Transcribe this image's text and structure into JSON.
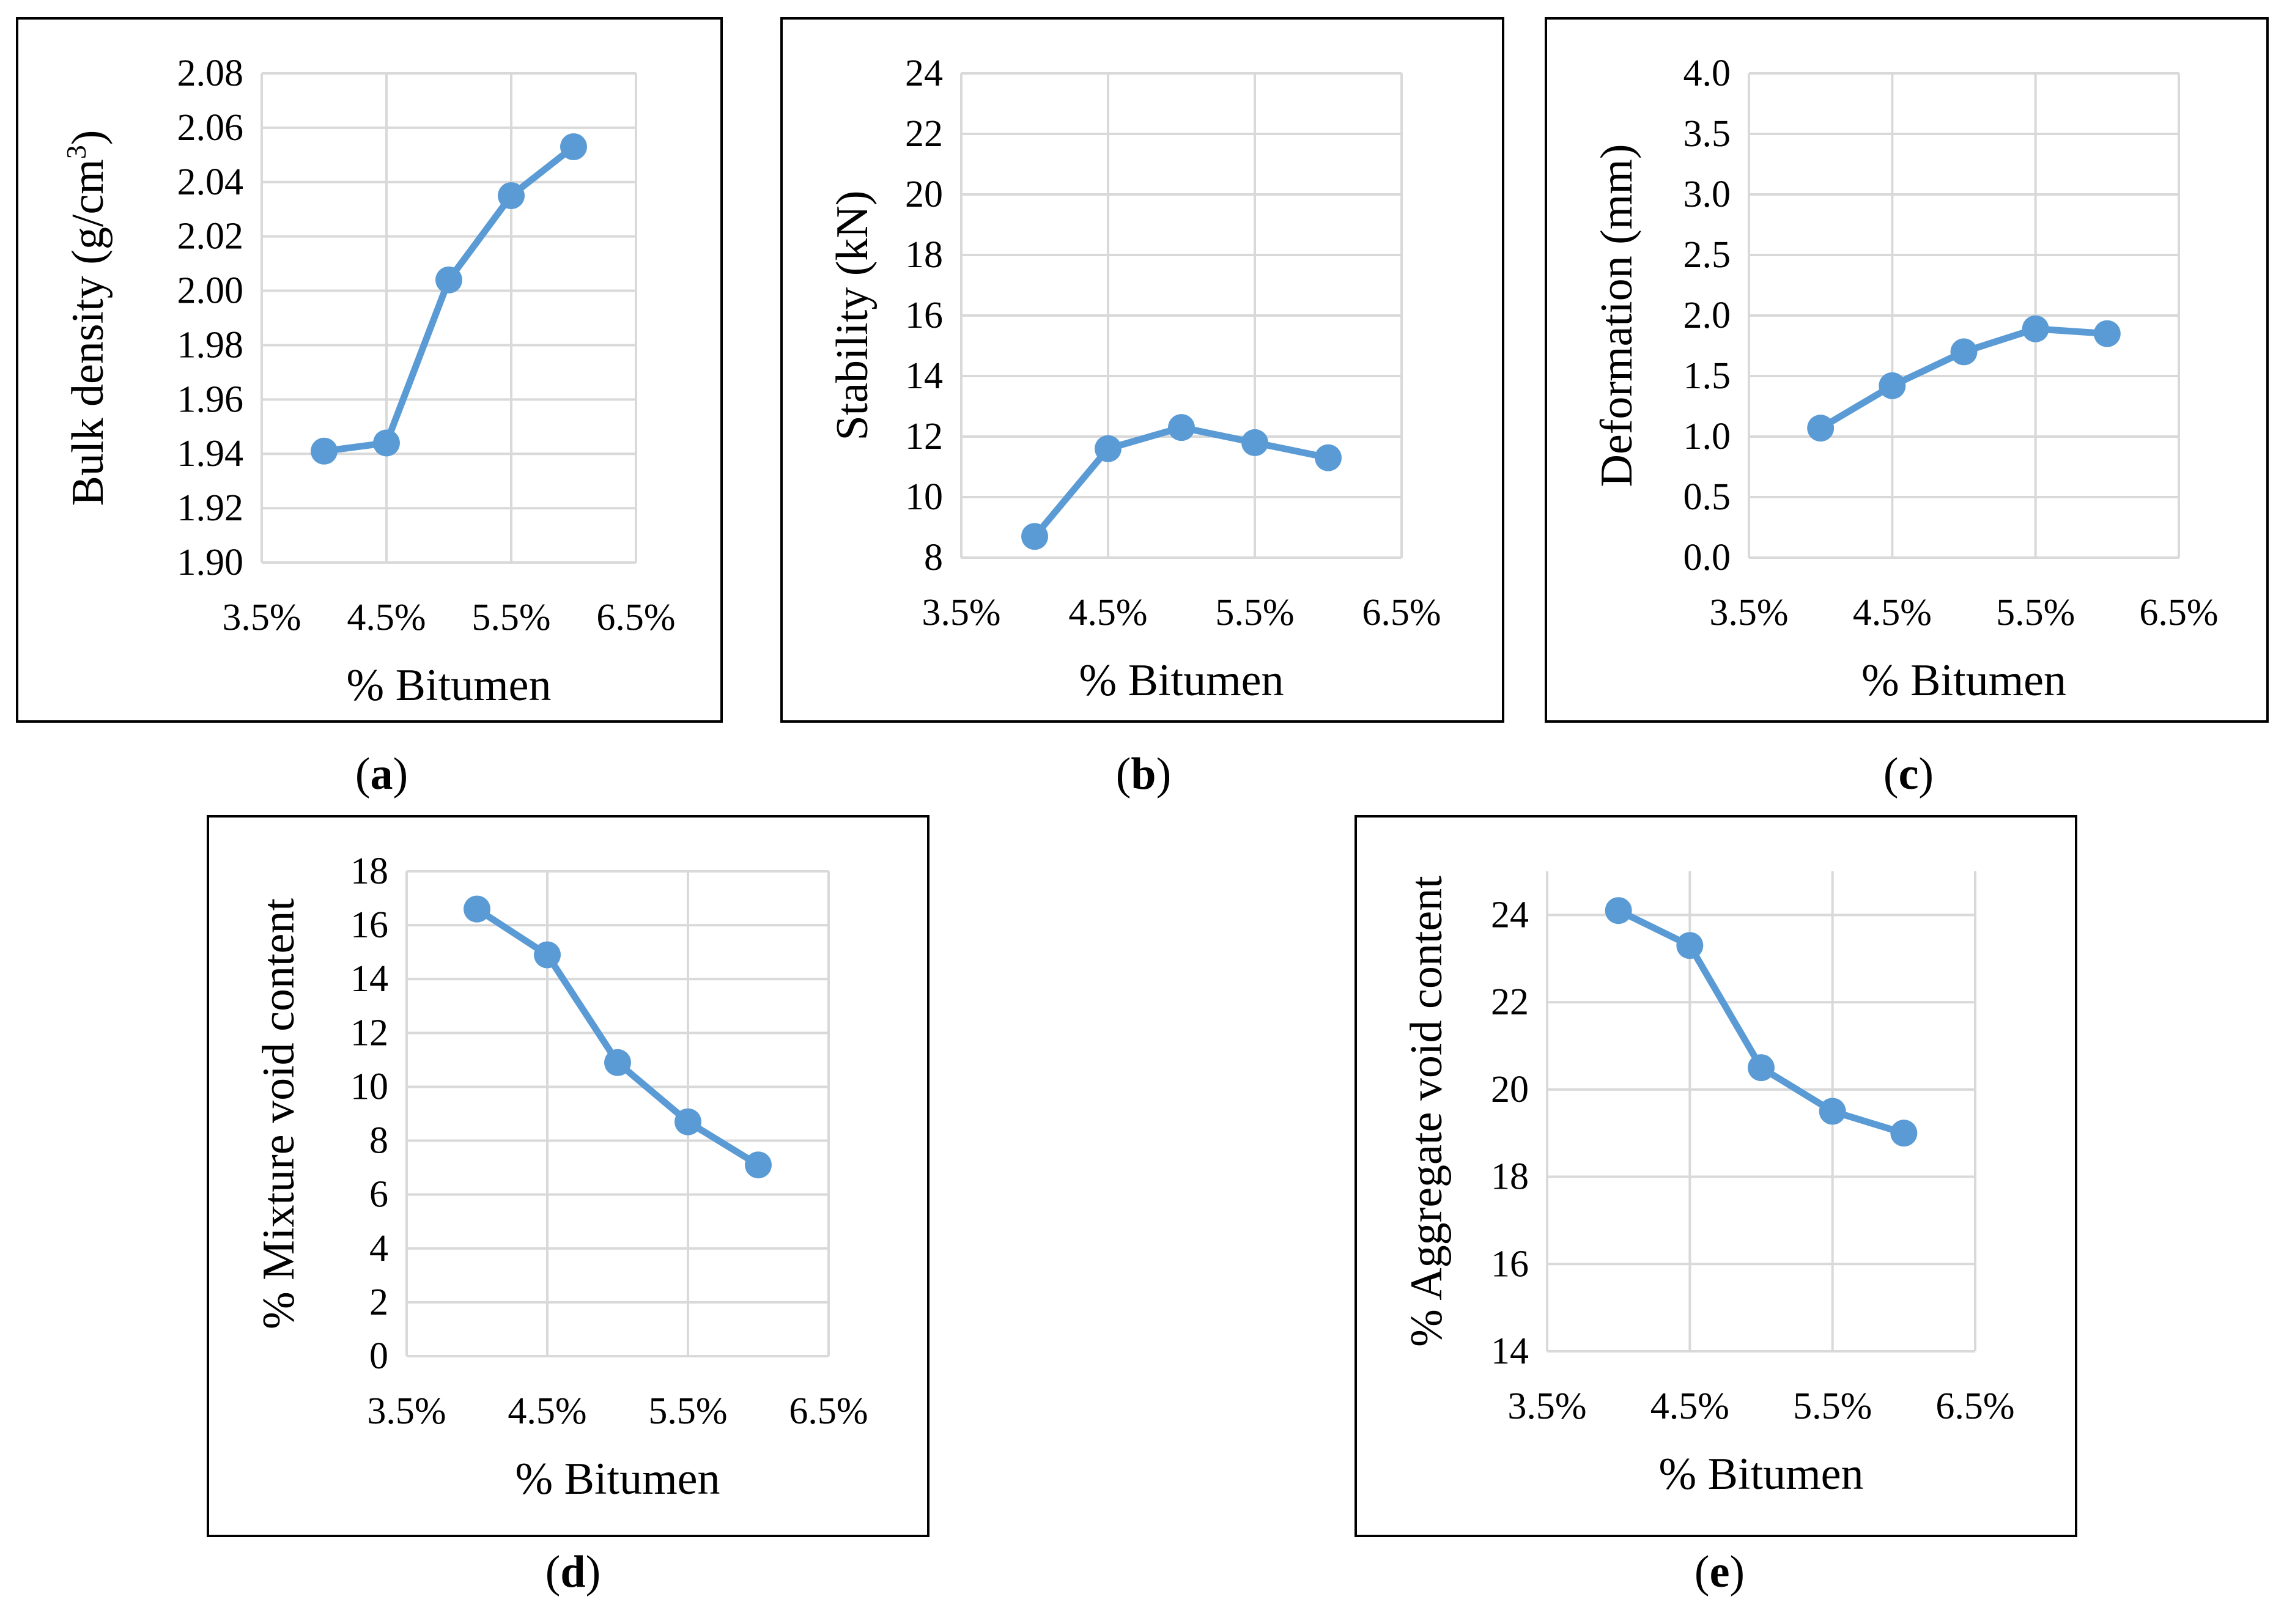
{
  "figure": {
    "line_color": "#5B9BD5",
    "grid_color": "#d9d9d9"
  },
  "chart_data": [
    {
      "id": "a",
      "type": "line",
      "caption": "a",
      "ylabel_main": "Bulk density (g/cm",
      "ylabel_sup": "3",
      "ylabel_tail": ")",
      "xlabel": "% Bitumen",
      "x_ticks": [
        0.035,
        0.045,
        0.055,
        0.065
      ],
      "x_tick_labels": [
        "3.5%",
        "4.5%",
        "5.5%",
        "6.5%"
      ],
      "xlim": [
        0.035,
        0.065
      ],
      "y_ticks": [
        1.9,
        1.92,
        1.94,
        1.96,
        1.98,
        2.0,
        2.02,
        2.04,
        2.06,
        2.08
      ],
      "y_tick_labels": [
        "1.90",
        "1.92",
        "1.94",
        "1.96",
        "1.98",
        "2.00",
        "2.02",
        "2.04",
        "2.06",
        "2.08"
      ],
      "ylim": [
        1.9,
        2.08
      ],
      "x": [
        0.04,
        0.045,
        0.05,
        0.055,
        0.06
      ],
      "y": [
        1.941,
        1.944,
        2.004,
        2.035,
        2.053
      ]
    },
    {
      "id": "b",
      "type": "line",
      "caption": "b",
      "ylabel_main": "Stability (kN)",
      "ylabel_sup": "",
      "ylabel_tail": "",
      "xlabel": "% Bitumen",
      "x_ticks": [
        0.035,
        0.045,
        0.055,
        0.065
      ],
      "x_tick_labels": [
        "3.5%",
        "4.5%",
        "5.5%",
        "6.5%"
      ],
      "xlim": [
        0.035,
        0.065
      ],
      "y_ticks": [
        8,
        10,
        12,
        14,
        16,
        18,
        20,
        22,
        24
      ],
      "y_tick_labels": [
        "8",
        "10",
        "12",
        "14",
        "16",
        "18",
        "20",
        "22",
        "24"
      ],
      "ylim": [
        8,
        24
      ],
      "x": [
        0.04,
        0.045,
        0.05,
        0.055,
        0.06
      ],
      "y": [
        8.7,
        11.6,
        12.3,
        11.8,
        11.3
      ]
    },
    {
      "id": "c",
      "type": "line",
      "caption": "c",
      "ylabel_main": "Deformation (mm)",
      "ylabel_sup": "",
      "ylabel_tail": "",
      "xlabel": "% Bitumen",
      "x_ticks": [
        0.035,
        0.045,
        0.055,
        0.065
      ],
      "x_tick_labels": [
        "3.5%",
        "4.5%",
        "5.5%",
        "6.5%"
      ],
      "xlim": [
        0.035,
        0.065
      ],
      "y_ticks": [
        0.0,
        0.5,
        1.0,
        1.5,
        2.0,
        2.5,
        3.0,
        3.5,
        4.0
      ],
      "y_tick_labels": [
        "0.0",
        "0.5",
        "1.0",
        "1.5",
        "2.0",
        "2.5",
        "3.0",
        "3.5",
        "4.0"
      ],
      "ylim": [
        0,
        4
      ],
      "x": [
        0.04,
        0.045,
        0.05,
        0.055,
        0.06
      ],
      "y": [
        1.07,
        1.42,
        1.7,
        1.89,
        1.85
      ]
    },
    {
      "id": "d",
      "type": "line",
      "caption": "d",
      "ylabel_main": "% Mixture void content",
      "ylabel_sup": "",
      "ylabel_tail": "",
      "xlabel": "% Bitumen",
      "x_ticks": [
        0.035,
        0.045,
        0.055,
        0.065
      ],
      "x_tick_labels": [
        "3.5%",
        "4.5%",
        "5.5%",
        "6.5%"
      ],
      "xlim": [
        0.035,
        0.065
      ],
      "y_ticks": [
        0,
        2,
        4,
        6,
        8,
        10,
        12,
        14,
        16,
        18
      ],
      "y_tick_labels": [
        "0",
        "2",
        "4",
        "6",
        "8",
        "10",
        "12",
        "14",
        "16",
        "18"
      ],
      "ylim": [
        0,
        18
      ],
      "x": [
        0.04,
        0.045,
        0.05,
        0.055,
        0.06
      ],
      "y": [
        16.6,
        14.9,
        10.9,
        8.7,
        7.1
      ]
    },
    {
      "id": "e",
      "type": "line",
      "caption": "e",
      "ylabel_main": "% Aggregate void content",
      "ylabel_sup": "",
      "ylabel_tail": "",
      "xlabel": "% Bitumen",
      "x_ticks": [
        0.035,
        0.045,
        0.055,
        0.065
      ],
      "x_tick_labels": [
        "3.5%",
        "4.5%",
        "5.5%",
        "6.5%"
      ],
      "xlim": [
        0.035,
        0.065
      ],
      "y_ticks": [
        14,
        16,
        18,
        20,
        22,
        24
      ],
      "y_tick_labels": [
        "14",
        "16",
        "18",
        "20",
        "22",
        "24"
      ],
      "ylim": [
        14,
        25
      ],
      "x": [
        0.04,
        0.045,
        0.05,
        0.055,
        0.06
      ],
      "y": [
        24.1,
        23.3,
        20.5,
        19.5,
        19.0
      ]
    }
  ]
}
